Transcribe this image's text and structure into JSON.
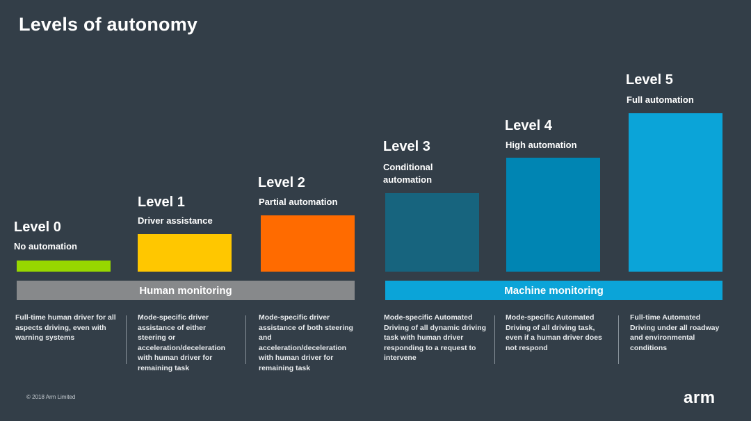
{
  "slide": {
    "title": "Levels of autonomy"
  },
  "levels": [
    {
      "label": "Level 0",
      "name": "No automation",
      "color": "#97d700",
      "autonomy_rank": 0,
      "description": "Full-time human driver for all aspects driving, even with warning systems"
    },
    {
      "label": "Level 1",
      "name": "Driver assistance",
      "color": "#ffc700",
      "autonomy_rank": 1,
      "description": "Mode-specific driver assistance of either steering or acceleration/deceleration with human driver for remaining task"
    },
    {
      "label": "Level 2",
      "name": "Partial automation",
      "color": "#ff6b00",
      "autonomy_rank": 2,
      "description": "Mode-specific driver assistance of both steering and acceleration/deceleration with human driver for remaining task"
    },
    {
      "label": "Level 3",
      "name": "Conditional automation",
      "color": "#17647e",
      "autonomy_rank": 3,
      "description": "Mode-specific Automated Driving of all dynamic driving task with human driver responding to a request to intervene"
    },
    {
      "label": "Level 4",
      "name": "High automation",
      "color": "#0085b3",
      "autonomy_rank": 4,
      "description": "Mode-specific Automated Driving of all driving task, even if a human driver does not respond"
    },
    {
      "label": "Level 5",
      "name": "Full automation",
      "color": "#0ba4d8",
      "autonomy_rank": 5,
      "description": "Full-time Automated Driving under all roadway and environmental conditions"
    }
  ],
  "bands": {
    "human": {
      "label": "Human monitoring",
      "color": "#87898b"
    },
    "machine": {
      "label": "Machine monitoring",
      "color": "#0ba4d8"
    }
  },
  "footer": {
    "copyright": "© 2018 Arm Limited",
    "logo_text": "arm"
  }
}
